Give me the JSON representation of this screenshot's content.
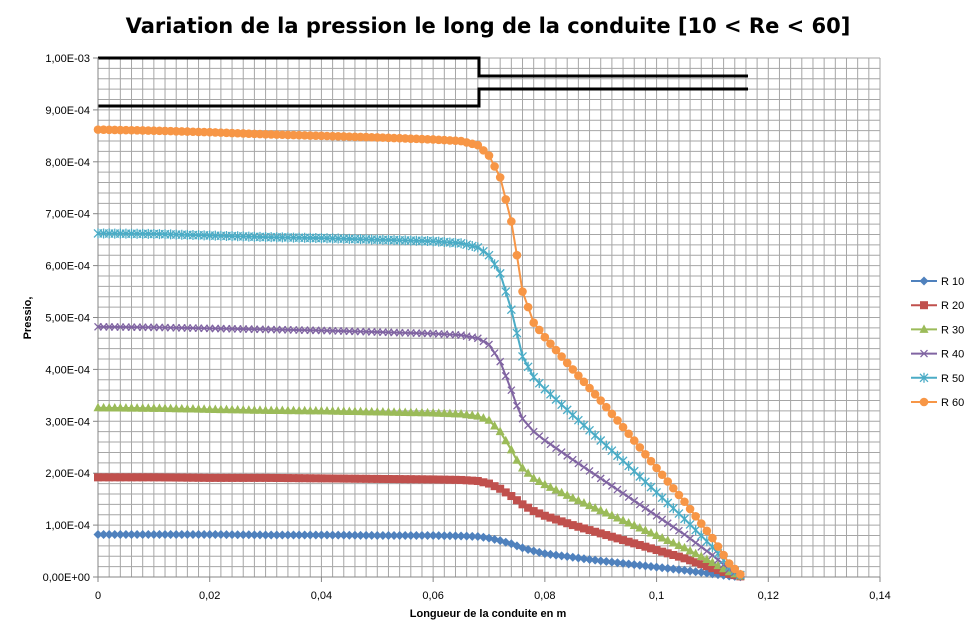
{
  "chart_data": {
    "type": "line",
    "title": "Variation de la pression le long de la conduite [10 < Re < 60]",
    "xlabel": "Longueur de la conduite en m",
    "ylabel": "Pressio,",
    "xlim": [
      0,
      0.14
    ],
    "ylim": [
      0,
      0.001
    ],
    "x_ticks": [
      0,
      0.02,
      0.04,
      0.06,
      0.08,
      0.1,
      0.12,
      0.14
    ],
    "x_tick_labels": [
      "0",
      "0,02",
      "0,04",
      "0,06",
      "0,08",
      "0,1",
      "0,12",
      "0,14"
    ],
    "y_ticks": [
      0,
      0.0001,
      0.0002,
      0.0003,
      0.0004,
      0.0005,
      0.0006,
      0.0007,
      0.0008,
      0.0009,
      0.001
    ],
    "y_tick_labels": [
      "0,00E+00",
      "1,00E-04",
      "2,00E-04",
      "3,00E-04",
      "4,00E-04",
      "5,00E-04",
      "6,00E-04",
      "7,00E-04",
      "8,00E-04",
      "9,00E-04",
      "1,00E-03"
    ],
    "grid": true,
    "legend_position": "right",
    "x": [
      0,
      0.01,
      0.02,
      0.03,
      0.04,
      0.05,
      0.06,
      0.065,
      0.068,
      0.07,
      0.072,
      0.074,
      0.075,
      0.076,
      0.078,
      0.08,
      0.085,
      0.09,
      0.095,
      0.1,
      0.105,
      0.11,
      0.113,
      0.1155
    ],
    "series": [
      {
        "name": "R 10",
        "color": "#4f81bd",
        "marker": "diamond",
        "values": [
          8.2e-05,
          8.2e-05,
          8.2e-05,
          8.1e-05,
          8.1e-05,
          8e-05,
          8e-05,
          7.9e-05,
          7.8e-05,
          7.5e-05,
          7e-05,
          6.4e-05,
          6e-05,
          5.6e-05,
          5e-05,
          4.5e-05,
          3.8e-05,
          3.1e-05,
          2.5e-05,
          1.9e-05,
          1.3e-05,
          6e-06,
          2e-06,
          0
        ]
      },
      {
        "name": "R 20",
        "color": "#c0504d",
        "marker": "square",
        "values": [
          0.000192,
          0.000192,
          0.000191,
          0.000191,
          0.00019,
          0.000189,
          0.000188,
          0.000187,
          0.000185,
          0.00018,
          0.00017,
          0.000156,
          0.000148,
          0.00014,
          0.000127,
          0.000118,
          0.0001,
          8.4e-05,
          6.8e-05,
          5.2e-05,
          3.6e-05,
          1.7e-05,
          6e-06,
          0
        ]
      },
      {
        "name": "R 30",
        "color": "#9bbb59",
        "marker": "triangle",
        "values": [
          0.000326,
          0.000325,
          0.000323,
          0.000321,
          0.00032,
          0.000318,
          0.000316,
          0.000314,
          0.00031,
          0.000302,
          0.00028,
          0.000245,
          0.000225,
          0.00021,
          0.00019,
          0.000178,
          0.000152,
          0.000128,
          0.000104,
          8e-05,
          5.6e-05,
          2.8e-05,
          1e-05,
          0
        ]
      },
      {
        "name": "R 40",
        "color": "#8064a2",
        "marker": "x",
        "values": [
          0.000482,
          0.000481,
          0.000479,
          0.000477,
          0.000475,
          0.000472,
          0.000469,
          0.000466,
          0.00046,
          0.000448,
          0.000415,
          0.00036,
          0.00033,
          0.000305,
          0.00028,
          0.000263,
          0.000226,
          0.00019,
          0.000154,
          0.000118,
          8.2e-05,
          4.2e-05,
          1.5e-05,
          0
        ]
      },
      {
        "name": "R 50",
        "color": "#4bacc6",
        "marker": "star",
        "values": [
          0.000662,
          0.000661,
          0.000658,
          0.000655,
          0.000653,
          0.00065,
          0.000647,
          0.000643,
          0.000635,
          0.00062,
          0.000585,
          0.000515,
          0.00047,
          0.000425,
          0.000385,
          0.000362,
          0.000312,
          0.000263,
          0.000214,
          0.000163,
          0.000112,
          5.8e-05,
          2e-05,
          0
        ]
      },
      {
        "name": "R 60",
        "color": "#f79646",
        "marker": "circle",
        "values": [
          0.000862,
          0.00086,
          0.000857,
          0.000853,
          0.00085,
          0.000847,
          0.000843,
          0.00084,
          0.000832,
          0.000812,
          0.00077,
          0.000685,
          0.00062,
          0.00055,
          0.00049,
          0.000462,
          0.0004,
          0.00034,
          0.000276,
          0.00021,
          0.000145,
          7.5e-05,
          2.6e-05,
          0
        ]
      }
    ]
  }
}
